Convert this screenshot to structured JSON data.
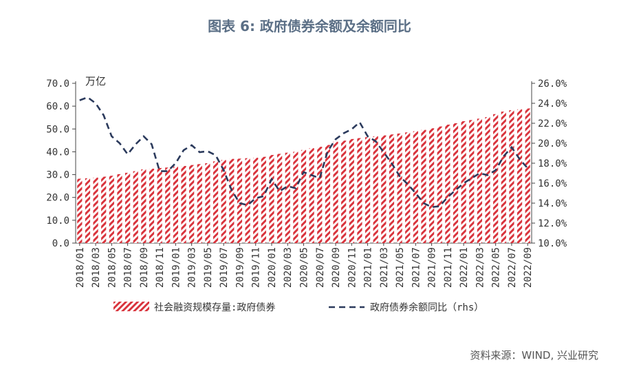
{
  "title": "图表 6: 政府债券余额及余额同比",
  "source": "资料来源：WIND, 兴业研究",
  "chart_data": {
    "type": "bar",
    "left_unit": "万亿",
    "left_ticks": [
      "70.0",
      "60.0",
      "50.0",
      "40.0",
      "30.0",
      "20.0",
      "10.0",
      "0.0"
    ],
    "right_ticks": [
      "26.0%",
      "24.0%",
      "22.0%",
      "20.0%",
      "18.0%",
      "16.0%",
      "14.0%",
      "12.0%",
      "10.0%"
    ],
    "left_ylim": [
      0,
      70
    ],
    "right_ylim": [
      10,
      26
    ],
    "x_tick_labels": [
      "2018/01",
      "2018/03",
      "2018/05",
      "2018/07",
      "2018/09",
      "2018/11",
      "2019/01",
      "2019/03",
      "2019/05",
      "2019/07",
      "2019/09",
      "2019/11",
      "2020/01",
      "2020/03",
      "2020/05",
      "2020/07",
      "2020/09",
      "2020/11",
      "2021/01",
      "2021/03",
      "2021/05",
      "2021/07",
      "2021/09",
      "2021/11",
      "2022/01",
      "2022/03",
      "2022/05",
      "2022/07",
      "2022/09"
    ],
    "categories": [
      "2018/01",
      "2018/02",
      "2018/03",
      "2018/04",
      "2018/05",
      "2018/06",
      "2018/07",
      "2018/08",
      "2018/09",
      "2018/10",
      "2018/11",
      "2018/12",
      "2019/01",
      "2019/02",
      "2019/03",
      "2019/04",
      "2019/05",
      "2019/06",
      "2019/07",
      "2019/08",
      "2019/09",
      "2019/10",
      "2019/11",
      "2019/12",
      "2020/01",
      "2020/02",
      "2020/03",
      "2020/04",
      "2020/05",
      "2020/06",
      "2020/07",
      "2020/08",
      "2020/09",
      "2020/10",
      "2020/11",
      "2020/12",
      "2021/01",
      "2021/02",
      "2021/03",
      "2021/04",
      "2021/05",
      "2021/06",
      "2021/07",
      "2021/08",
      "2021/09",
      "2021/10",
      "2021/11",
      "2021/12",
      "2022/01",
      "2022/02",
      "2022/03",
      "2022/04",
      "2022/05",
      "2022/06",
      "2022/07",
      "2022/08",
      "2022/09"
    ],
    "series": [
      {
        "name": "社会融资规模存量:政府债券",
        "axis": "left",
        "style": "bar",
        "color": "#d9343d",
        "values": [
          28.2,
          28.4,
          28.7,
          29.1,
          29.5,
          30.2,
          30.8,
          31.5,
          32.3,
          32.6,
          32.9,
          33.1,
          33.5,
          33.8,
          34.2,
          34.6,
          35.0,
          35.8,
          36.4,
          36.9,
          37.0,
          37.2,
          37.4,
          37.8,
          38.6,
          39.1,
          39.6,
          40.0,
          40.8,
          41.6,
          42.2,
          43.0,
          44.4,
          44.9,
          45.6,
          46.0,
          46.4,
          46.8,
          47.2,
          47.6,
          48.0,
          48.5,
          49.0,
          49.6,
          50.3,
          51.1,
          51.9,
          52.5,
          53.4,
          53.9,
          54.5,
          55.2,
          56.5,
          57.6,
          58.2,
          58.6,
          59.0
        ]
      },
      {
        "name": "政府债券余额同比（rhs）",
        "axis": "right",
        "style": "dashed-line",
        "color": "#2b3a5c",
        "values": [
          24.3,
          24.6,
          24.0,
          22.8,
          20.7,
          20.0,
          18.9,
          19.9,
          20.7,
          19.9,
          17.2,
          17.2,
          18.0,
          19.3,
          19.8,
          19.1,
          19.2,
          18.8,
          17.3,
          15.3,
          14.0,
          13.8,
          14.5,
          14.7,
          16.4,
          15.2,
          15.7,
          15.5,
          17.1,
          16.8,
          16.5,
          19.2,
          20.4,
          21.0,
          21.4,
          22.1,
          20.7,
          20.2,
          19.1,
          18.0,
          16.7,
          15.9,
          15.0,
          14.0,
          13.6,
          13.7,
          14.6,
          15.3,
          16.0,
          16.5,
          17.0,
          16.8,
          17.3,
          18.7,
          19.6,
          18.4,
          17.5
        ]
      }
    ],
    "legend_position": "bottom"
  }
}
